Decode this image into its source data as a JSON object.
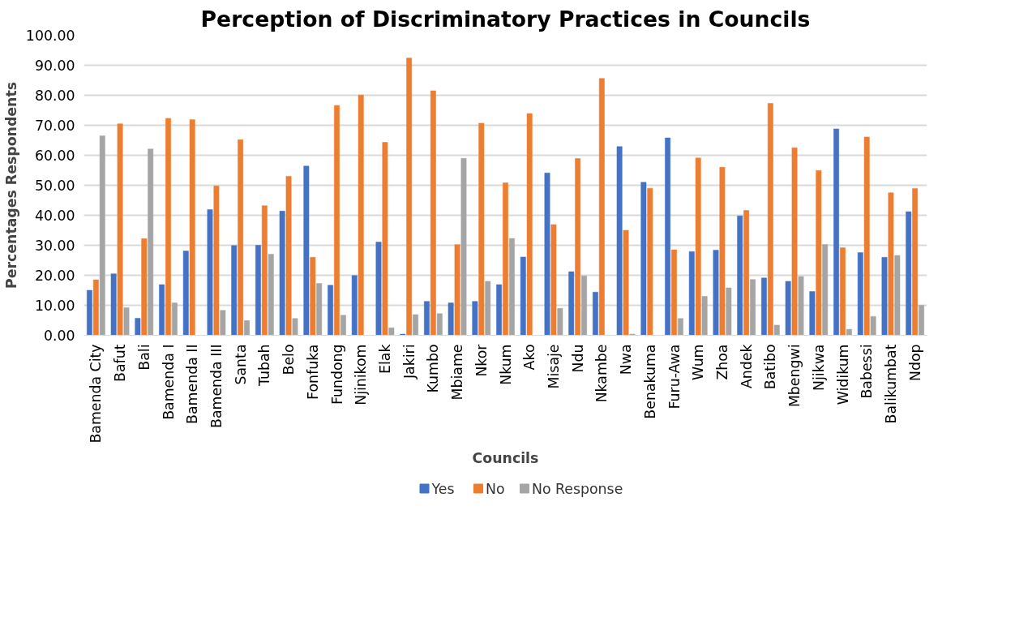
{
  "chart_data": {
    "type": "bar",
    "title": "Perception of Discriminatory Practices in Councils",
    "xlabel": "Councils",
    "ylabel": "Percentages Respondents",
    "categories": [
      "Bamenda City",
      "Bafut",
      "Bali",
      "Bamenda I",
      "Bamenda II",
      "Bamenda III",
      "Santa",
      "Tubah",
      "Belo",
      "Fonfuka",
      "Fundong",
      "Njinikom",
      "Elak",
      "Jakiri",
      "Kumbo",
      "Mbiame",
      "Nkor",
      "Nkum",
      "Ako",
      "Misaje",
      "Ndu",
      "Nkambe",
      "Nwa",
      "Benakuma",
      "Furu-Awa",
      "Wum",
      "Zhoa",
      "Andek",
      "Batibo",
      "Mbengwi",
      "Njikwa",
      "Widikum",
      "Babessi",
      "Balikumbat",
      "Ndop"
    ],
    "series": [
      {
        "name": "Yes",
        "color": "#4472c4",
        "values": [
          15.0,
          20.5,
          5.7,
          16.9,
          28.1,
          41.9,
          29.9,
          30.0,
          41.4,
          56.4,
          16.7,
          19.9,
          31.1,
          0.4,
          11.3,
          10.8,
          11.3,
          16.9,
          26.1,
          54.1,
          21.2,
          14.4,
          62.9,
          51.0,
          65.8,
          27.9,
          28.4,
          39.8,
          19.1,
          18.0,
          14.6,
          68.8,
          27.6,
          26.0,
          41.2
        ]
      },
      {
        "name": "No",
        "color": "#ed7d31",
        "values": [
          18.5,
          70.5,
          32.2,
          72.3,
          71.9,
          49.8,
          65.2,
          43.2,
          53.0,
          26.0,
          76.6,
          80.1,
          64.3,
          92.4,
          81.5,
          30.2,
          70.7,
          50.8,
          73.9,
          36.9,
          58.9,
          85.6,
          35.0,
          49.0,
          28.5,
          59.1,
          56.0,
          41.6,
          77.3,
          62.5,
          54.9,
          29.2,
          66.1,
          47.5,
          48.9
        ]
      },
      {
        "name": "No Response",
        "color": "#a5a5a5",
        "values": [
          66.5,
          9.2,
          62.1,
          10.8,
          0,
          8.3,
          4.9,
          27.0,
          5.6,
          17.3,
          6.7,
          0,
          2.5,
          6.9,
          7.2,
          59.0,
          18.0,
          32.3,
          0,
          9.0,
          19.8,
          0,
          0.4,
          0,
          5.6,
          13.0,
          15.8,
          18.6,
          3.4,
          19.6,
          30.3,
          2.0,
          6.3,
          26.6,
          10.0
        ]
      }
    ],
    "ylim": [
      0,
      100
    ],
    "yticks": [
      {
        "value": 0,
        "label": "0.00"
      },
      {
        "value": 10,
        "label": "10.00"
      },
      {
        "value": 20,
        "label": "20.00"
      },
      {
        "value": 30,
        "label": "30.00"
      },
      {
        "value": 40,
        "label": "40.00"
      },
      {
        "value": 50,
        "label": "50.00"
      },
      {
        "value": 60,
        "label": "60.00"
      },
      {
        "value": 70,
        "label": "70.00"
      },
      {
        "value": 80,
        "label": "80.00"
      },
      {
        "value": 90,
        "label": "90.00"
      },
      {
        "value": 100,
        "label": "100.00"
      }
    ],
    "grid": "y",
    "legend": "bottom"
  }
}
